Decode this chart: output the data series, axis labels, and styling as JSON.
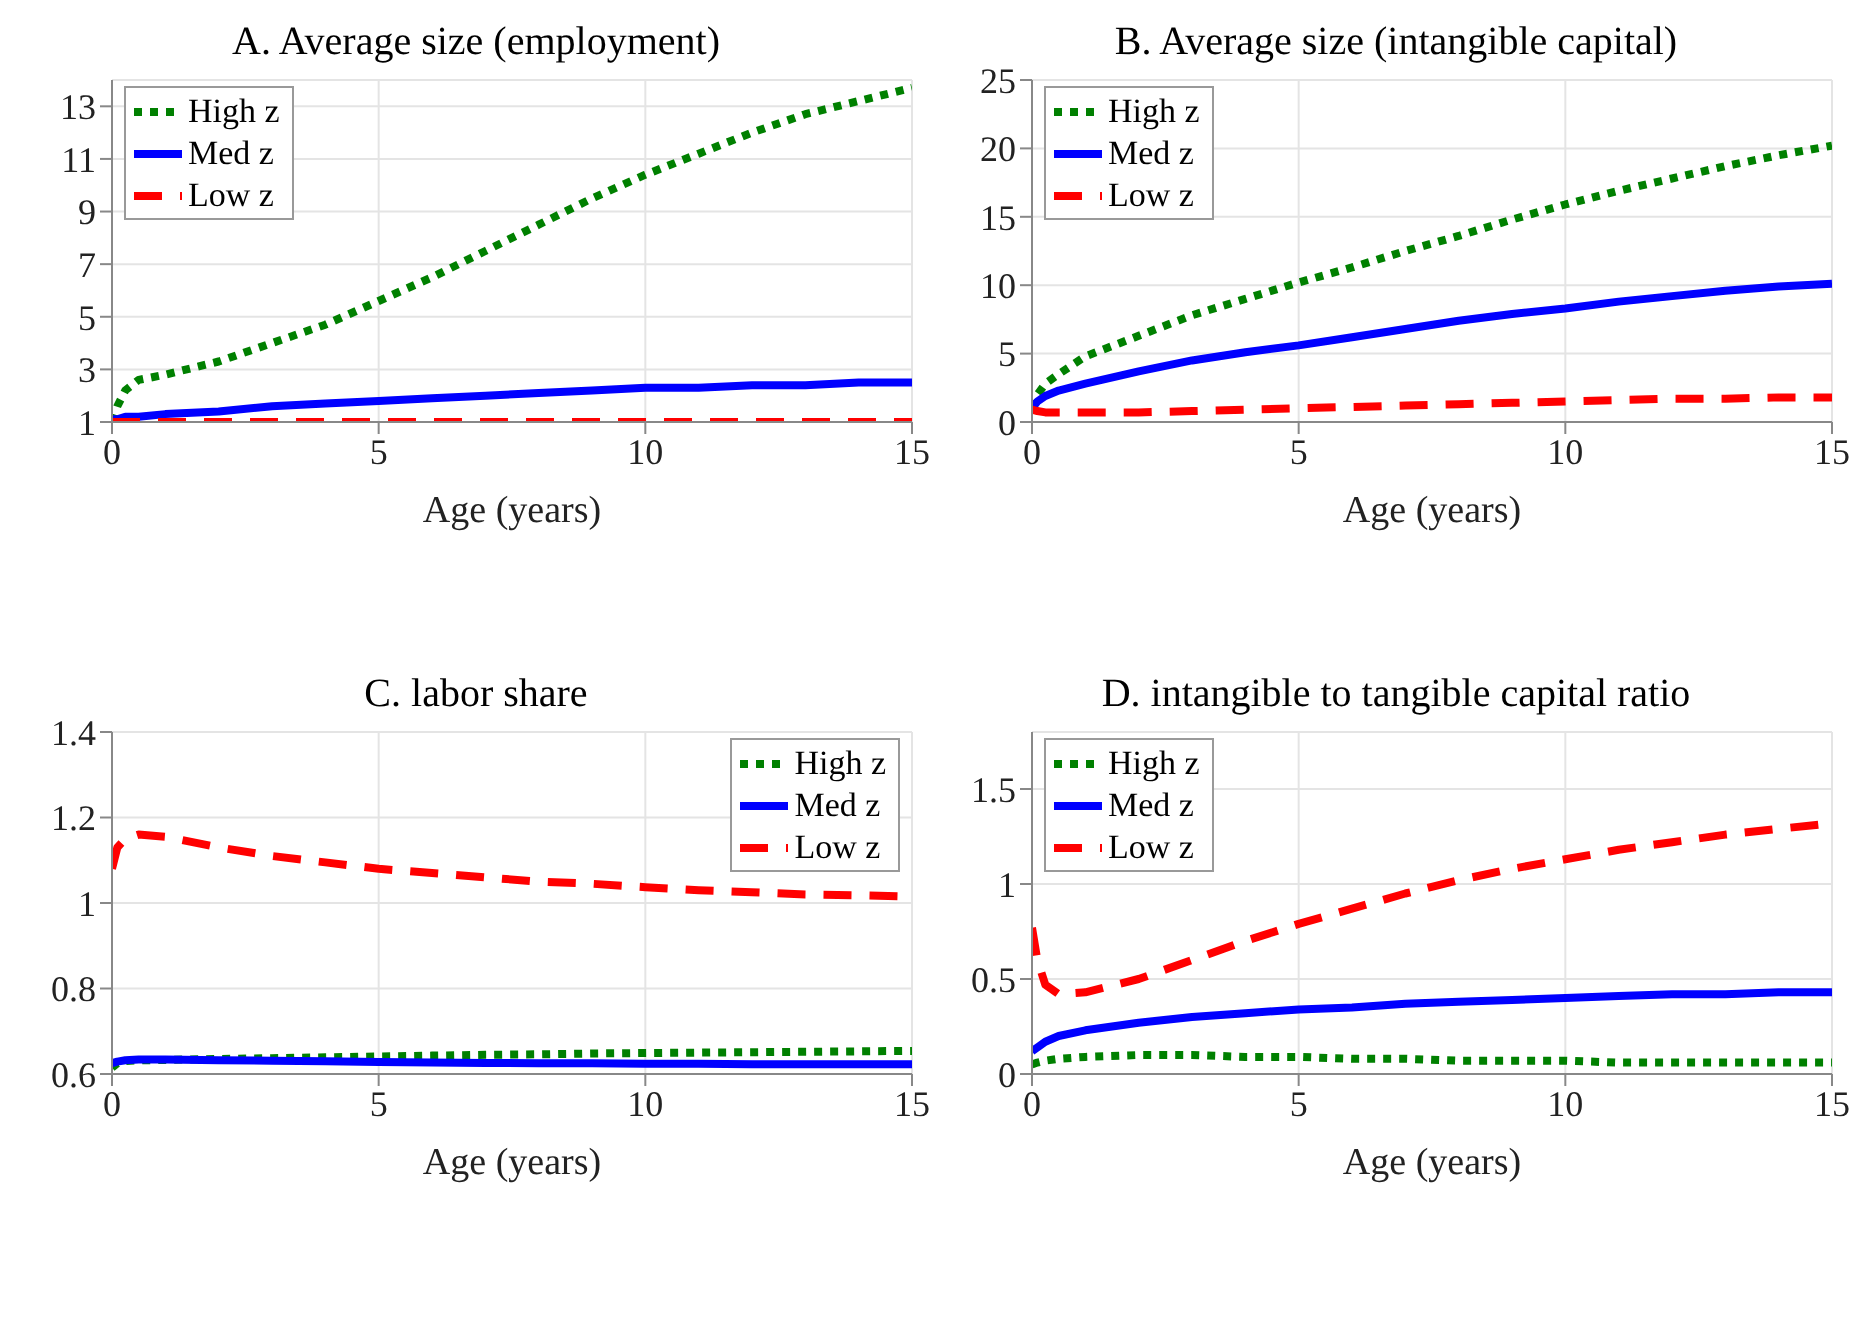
{
  "chart_data": [
    {
      "type": "line",
      "title": "A. Average size (employment)",
      "xlabel": "Age (years)",
      "x": [
        0,
        0.1,
        0.25,
        0.5,
        1,
        2,
        3,
        4,
        5,
        6,
        7,
        8,
        9,
        10,
        11,
        12,
        13,
        14,
        15
      ],
      "xlim": [
        0,
        15
      ],
      "xticks": [
        0,
        5,
        10,
        15
      ],
      "ylim": [
        1,
        14
      ],
      "yticks": [
        1,
        3,
        5,
        7,
        9,
        11,
        13
      ],
      "grid": true,
      "legend": "top left",
      "series": [
        {
          "name": "High z",
          "color": "#008000",
          "line_style": "dotted",
          "values": [
            1.0,
            1.6,
            2.2,
            2.6,
            2.8,
            3.3,
            4.0,
            4.7,
            5.6,
            6.5,
            7.5,
            8.5,
            9.5,
            10.4,
            11.2,
            12.0,
            12.7,
            13.2,
            13.7
          ]
        },
        {
          "name": "Med z",
          "color": "#0000ff",
          "line_style": "solid",
          "values": [
            1.1,
            1.1,
            1.2,
            1.2,
            1.3,
            1.4,
            1.6,
            1.7,
            1.8,
            1.9,
            2.0,
            2.1,
            2.2,
            2.3,
            2.3,
            2.4,
            2.4,
            2.5,
            2.5
          ]
        },
        {
          "name": "Low z",
          "color": "#ff0000",
          "line_style": "dashed",
          "values": [
            1,
            1,
            1,
            1,
            1,
            1,
            1,
            1,
            1,
            1,
            1,
            1,
            1,
            1,
            1,
            1,
            1,
            1,
            1
          ]
        }
      ]
    },
    {
      "type": "line",
      "title": "B. Average size (intangible capital)",
      "xlabel": "Age (years)",
      "x": [
        0,
        0.1,
        0.25,
        0.5,
        1,
        2,
        3,
        4,
        5,
        6,
        7,
        8,
        9,
        10,
        11,
        12,
        13,
        14,
        15
      ],
      "xlim": [
        0,
        15
      ],
      "xticks": [
        0,
        5,
        10,
        15
      ],
      "ylim": [
        0,
        25
      ],
      "yticks": [
        0,
        5,
        10,
        15,
        20,
        25
      ],
      "grid": true,
      "legend": "top left",
      "series": [
        {
          "name": "High z",
          "color": "#008000",
          "line_style": "dotted",
          "values": [
            1.0,
            2.0,
            2.8,
            3.5,
            4.8,
            6.3,
            7.8,
            9.0,
            10.2,
            11.3,
            12.5,
            13.6,
            14.8,
            15.9,
            16.9,
            17.8,
            18.7,
            19.5,
            20.2
          ]
        },
        {
          "name": "Med z",
          "color": "#0000ff",
          "line_style": "solid",
          "values": [
            1.0,
            1.5,
            1.9,
            2.3,
            2.8,
            3.7,
            4.5,
            5.1,
            5.6,
            6.2,
            6.8,
            7.4,
            7.9,
            8.3,
            8.8,
            9.2,
            9.6,
            9.9,
            10.1
          ]
        },
        {
          "name": "Low z",
          "color": "#ff0000",
          "line_style": "dashed",
          "values": [
            0.9,
            0.8,
            0.7,
            0.7,
            0.7,
            0.7,
            0.8,
            0.9,
            1.0,
            1.1,
            1.2,
            1.3,
            1.4,
            1.5,
            1.6,
            1.7,
            1.7,
            1.8,
            1.8
          ]
        }
      ]
    },
    {
      "type": "line",
      "title": "C. labor share",
      "xlabel": "Age (years)",
      "x": [
        0,
        0.1,
        0.25,
        0.5,
        1,
        2,
        3,
        4,
        5,
        6,
        7,
        8,
        9,
        10,
        11,
        12,
        13,
        14,
        15
      ],
      "xlim": [
        0,
        15
      ],
      "xticks": [
        0,
        5,
        10,
        15
      ],
      "ylim": [
        0.6,
        1.4
      ],
      "yticks": [
        0.6,
        0.8,
        1,
        1.2,
        1.4
      ],
      "grid": true,
      "legend": "top right",
      "series": [
        {
          "name": "High z",
          "color": "#008000",
          "line_style": "dotted",
          "values": [
            0.615,
            0.625,
            0.63,
            0.632,
            0.633,
            0.635,
            0.637,
            0.639,
            0.641,
            0.643,
            0.645,
            0.646,
            0.648,
            0.649,
            0.65,
            0.651,
            0.652,
            0.653,
            0.654
          ]
        },
        {
          "name": "Med z",
          "color": "#0000ff",
          "line_style": "solid",
          "values": [
            0.625,
            0.629,
            0.632,
            0.634,
            0.634,
            0.632,
            0.631,
            0.63,
            0.628,
            0.627,
            0.626,
            0.625,
            0.625,
            0.624,
            0.624,
            0.623,
            0.623,
            0.623,
            0.623
          ]
        },
        {
          "name": "Low z",
          "color": "#ff0000",
          "line_style": "dashed",
          "values": [
            1.08,
            1.13,
            1.15,
            1.16,
            1.155,
            1.13,
            1.11,
            1.095,
            1.08,
            1.07,
            1.06,
            1.05,
            1.045,
            1.037,
            1.03,
            1.025,
            1.02,
            1.018,
            1.015
          ]
        }
      ]
    },
    {
      "type": "line",
      "title": "D. intangible to tangible capital ratio",
      "xlabel": "Age (years)",
      "x": [
        0,
        0.1,
        0.25,
        0.5,
        1,
        2,
        3,
        4,
        5,
        6,
        7,
        8,
        9,
        10,
        11,
        12,
        13,
        14,
        15
      ],
      "xlim": [
        0,
        15
      ],
      "xticks": [
        0,
        5,
        10,
        15
      ],
      "ylim": [
        0,
        1.8
      ],
      "yticks": [
        0,
        0.5,
        1,
        1.5
      ],
      "grid": true,
      "legend": "top left",
      "series": [
        {
          "name": "High z",
          "color": "#008000",
          "line_style": "dotted",
          "values": [
            0.05,
            0.06,
            0.07,
            0.08,
            0.09,
            0.1,
            0.1,
            0.09,
            0.09,
            0.08,
            0.08,
            0.07,
            0.07,
            0.07,
            0.06,
            0.06,
            0.06,
            0.06,
            0.06
          ]
        },
        {
          "name": "Med z",
          "color": "#0000ff",
          "line_style": "solid",
          "values": [
            0.12,
            0.14,
            0.17,
            0.2,
            0.23,
            0.27,
            0.3,
            0.32,
            0.34,
            0.35,
            0.37,
            0.38,
            0.39,
            0.4,
            0.41,
            0.42,
            0.42,
            0.43,
            0.43
          ]
        },
        {
          "name": "Low z",
          "color": "#ff0000",
          "line_style": "dashed",
          "values": [
            0.77,
            0.6,
            0.47,
            0.42,
            0.43,
            0.5,
            0.6,
            0.7,
            0.79,
            0.87,
            0.95,
            1.02,
            1.08,
            1.13,
            1.18,
            1.22,
            1.26,
            1.29,
            1.32
          ]
        }
      ]
    }
  ]
}
